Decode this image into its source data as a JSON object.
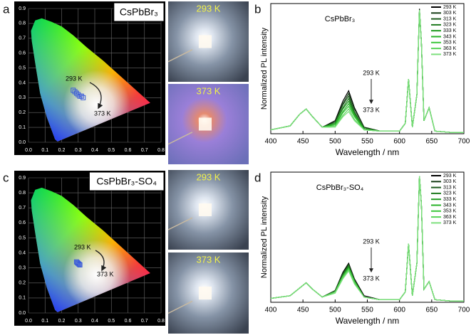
{
  "panels": [
    "a",
    "b",
    "c",
    "d"
  ],
  "photos": [
    "293 K",
    "373 K",
    "293 K",
    "373 K"
  ],
  "chart_data": [
    {
      "type": "cie",
      "label": "CsPbBr₃",
      "annotations": [
        "293 K",
        "373 K"
      ],
      "x": [
        0.27,
        0.28,
        0.29,
        0.3,
        0.31,
        0.32,
        0.33
      ],
      "values": [
        0.35,
        0.34,
        0.33,
        0.32,
        0.31,
        0.31,
        0.3
      ],
      "color": "#3a5bd9",
      "xlim": [
        0,
        0.8
      ],
      "ylim": [
        0,
        0.9
      ],
      "xticks": [
        {
          "value": 0,
          "label": "0.0"
        },
        0.1,
        0.2,
        0.3,
        0.4,
        0.5,
        0.6,
        0.7,
        0.8
      ],
      "yticks": [
        {
          "value": 0,
          "label": "0.0"
        },
        0.1,
        0.2,
        0.3,
        0.4,
        0.5,
        0.6,
        0.7,
        0.8,
        0.9
      ],
      "grid": true
    },
    {
      "type": "line",
      "label": "CsPbBr₃",
      "annotations": [
        "293 K",
        "373 K"
      ],
      "xlabel": "Wavelength / nm",
      "ylabel": "Normalized PL intensity",
      "legend": "upper right",
      "xlim": [
        400,
        700
      ],
      "xticks": [
        400,
        450,
        500,
        550,
        600,
        650,
        700
      ],
      "ylim": [
        0,
        1
      ],
      "x": [
        400,
        430,
        445,
        455,
        465,
        480,
        500,
        512,
        521,
        530,
        545,
        570,
        600,
        609,
        614,
        620,
        627,
        631,
        634,
        638,
        646,
        655,
        680,
        700
      ],
      "series": [
        {
          "name": "293 K",
          "color": "#000000",
          "values": [
            0.03,
            0.06,
            0.15,
            0.19,
            0.13,
            0.05,
            0.1,
            0.25,
            0.33,
            0.2,
            0.05,
            0.02,
            0.02,
            0.08,
            0.42,
            0.05,
            0.3,
            0.96,
            0.7,
            0.1,
            0.2,
            0.02,
            0.01,
            0.01
          ]
        },
        {
          "name": "303 K",
          "color": "#173d17",
          "values": [
            0.03,
            0.06,
            0.15,
            0.19,
            0.13,
            0.05,
            0.09,
            0.23,
            0.31,
            0.19,
            0.05,
            0.02,
            0.02,
            0.08,
            0.42,
            0.05,
            0.3,
            0.95,
            0.7,
            0.1,
            0.2,
            0.02,
            0.01,
            0.01
          ]
        },
        {
          "name": "313 K",
          "color": "#1d5a1d",
          "values": [
            0.03,
            0.06,
            0.15,
            0.19,
            0.13,
            0.05,
            0.09,
            0.22,
            0.29,
            0.17,
            0.04,
            0.02,
            0.02,
            0.08,
            0.42,
            0.05,
            0.3,
            0.95,
            0.7,
            0.1,
            0.2,
            0.02,
            0.01,
            0.01
          ]
        },
        {
          "name": "323 K",
          "color": "#1f7a1f",
          "values": [
            0.03,
            0.06,
            0.15,
            0.19,
            0.13,
            0.05,
            0.08,
            0.2,
            0.27,
            0.16,
            0.04,
            0.02,
            0.02,
            0.08,
            0.42,
            0.05,
            0.3,
            0.95,
            0.7,
            0.1,
            0.2,
            0.02,
            0.01,
            0.01
          ]
        },
        {
          "name": "333 K",
          "color": "#1f9a1f",
          "values": [
            0.03,
            0.06,
            0.15,
            0.19,
            0.13,
            0.05,
            0.08,
            0.19,
            0.25,
            0.15,
            0.04,
            0.02,
            0.02,
            0.08,
            0.42,
            0.05,
            0.3,
            0.95,
            0.7,
            0.1,
            0.2,
            0.02,
            0.01,
            0.01
          ]
        },
        {
          "name": "343 K",
          "color": "#27b327",
          "values": [
            0.03,
            0.06,
            0.15,
            0.19,
            0.13,
            0.05,
            0.07,
            0.17,
            0.23,
            0.14,
            0.03,
            0.02,
            0.02,
            0.08,
            0.42,
            0.05,
            0.3,
            0.95,
            0.7,
            0.1,
            0.2,
            0.02,
            0.01,
            0.01
          ]
        },
        {
          "name": "353 K",
          "color": "#3cc63c",
          "values": [
            0.03,
            0.06,
            0.15,
            0.19,
            0.13,
            0.05,
            0.06,
            0.16,
            0.21,
            0.13,
            0.03,
            0.02,
            0.02,
            0.08,
            0.42,
            0.05,
            0.3,
            0.95,
            0.7,
            0.1,
            0.2,
            0.02,
            0.01,
            0.01
          ]
        },
        {
          "name": "363 K",
          "color": "#58d458",
          "values": [
            0.03,
            0.06,
            0.15,
            0.19,
            0.13,
            0.05,
            0.06,
            0.14,
            0.19,
            0.11,
            0.03,
            0.02,
            0.02,
            0.08,
            0.42,
            0.05,
            0.3,
            0.95,
            0.7,
            0.1,
            0.2,
            0.02,
            0.01,
            0.01
          ]
        },
        {
          "name": "373 K",
          "color": "#7de07d",
          "values": [
            0.03,
            0.06,
            0.15,
            0.19,
            0.13,
            0.05,
            0.05,
            0.13,
            0.17,
            0.1,
            0.03,
            0.02,
            0.02,
            0.08,
            0.42,
            0.05,
            0.3,
            0.95,
            0.7,
            0.1,
            0.2,
            0.02,
            0.01,
            0.01
          ]
        }
      ]
    },
    {
      "type": "cie",
      "label": "CsPbBr₃-SO₄",
      "annotations": [
        "293 K",
        "373 K"
      ],
      "x": [
        0.29,
        0.295,
        0.3,
        0.305,
        0.31
      ],
      "values": [
        0.34,
        0.335,
        0.33,
        0.325,
        0.32
      ],
      "color": "#3a5bd9",
      "xlim": [
        0,
        0.8
      ],
      "ylim": [
        0,
        0.9
      ],
      "xticks": [
        {
          "value": 0,
          "label": "0.0"
        },
        0.1,
        0.2,
        0.3,
        0.4,
        0.5,
        0.6,
        0.7,
        0.8
      ],
      "yticks": [
        {
          "value": 0,
          "label": "0.0"
        },
        0.1,
        0.2,
        0.3,
        0.4,
        0.5,
        0.6,
        0.7,
        0.8,
        0.9
      ],
      "grid": true
    },
    {
      "type": "line",
      "label": "CsPbBr₃-SO₄",
      "annotations": [
        "293 K",
        "373 K"
      ],
      "xlabel": "Wavelength / nm",
      "ylabel": "Normalized PL intensity",
      "legend": "upper right",
      "xlim": [
        400,
        700
      ],
      "xticks": [
        400,
        450,
        500,
        550,
        600,
        650,
        700
      ],
      "ylim": [
        0,
        1
      ],
      "x": [
        400,
        430,
        445,
        455,
        465,
        480,
        500,
        512,
        521,
        530,
        545,
        570,
        600,
        609,
        614,
        620,
        627,
        631,
        634,
        638,
        646,
        655,
        680,
        700
      ],
      "series": [
        {
          "name": "293 K",
          "color": "#000000",
          "values": [
            0.03,
            0.05,
            0.11,
            0.15,
            0.1,
            0.04,
            0.09,
            0.23,
            0.3,
            0.18,
            0.05,
            0.02,
            0.02,
            0.08,
            0.45,
            0.05,
            0.3,
            0.97,
            0.75,
            0.1,
            0.16,
            0.02,
            0.01,
            0.01
          ]
        },
        {
          "name": "303 K",
          "color": "#173d17",
          "values": [
            0.03,
            0.05,
            0.11,
            0.15,
            0.1,
            0.04,
            0.09,
            0.22,
            0.29,
            0.17,
            0.04,
            0.02,
            0.02,
            0.08,
            0.45,
            0.05,
            0.3,
            0.97,
            0.75,
            0.1,
            0.16,
            0.02,
            0.01,
            0.01
          ]
        },
        {
          "name": "313 K",
          "color": "#1d5a1d",
          "values": [
            0.03,
            0.05,
            0.11,
            0.15,
            0.1,
            0.04,
            0.09,
            0.22,
            0.29,
            0.17,
            0.04,
            0.02,
            0.02,
            0.08,
            0.45,
            0.05,
            0.3,
            0.97,
            0.75,
            0.1,
            0.16,
            0.02,
            0.01,
            0.01
          ]
        },
        {
          "name": "323 K",
          "color": "#1f7a1f",
          "values": [
            0.03,
            0.05,
            0.11,
            0.15,
            0.1,
            0.04,
            0.08,
            0.21,
            0.28,
            0.17,
            0.04,
            0.02,
            0.02,
            0.08,
            0.45,
            0.05,
            0.3,
            0.97,
            0.75,
            0.1,
            0.16,
            0.02,
            0.01,
            0.01
          ]
        },
        {
          "name": "333 K",
          "color": "#1f9a1f",
          "values": [
            0.03,
            0.05,
            0.11,
            0.15,
            0.1,
            0.04,
            0.08,
            0.2,
            0.27,
            0.16,
            0.04,
            0.02,
            0.02,
            0.08,
            0.45,
            0.05,
            0.3,
            0.97,
            0.75,
            0.1,
            0.16,
            0.02,
            0.01,
            0.01
          ]
        },
        {
          "name": "343 K",
          "color": "#27b327",
          "values": [
            0.03,
            0.05,
            0.11,
            0.15,
            0.1,
            0.04,
            0.08,
            0.2,
            0.26,
            0.16,
            0.04,
            0.02,
            0.02,
            0.08,
            0.45,
            0.05,
            0.3,
            0.97,
            0.75,
            0.1,
            0.16,
            0.02,
            0.01,
            0.01
          ]
        },
        {
          "name": "353 K",
          "color": "#3cc63c",
          "values": [
            0.03,
            0.05,
            0.11,
            0.15,
            0.1,
            0.04,
            0.08,
            0.2,
            0.26,
            0.16,
            0.04,
            0.02,
            0.02,
            0.08,
            0.45,
            0.05,
            0.3,
            0.97,
            0.75,
            0.1,
            0.16,
            0.02,
            0.01,
            0.01
          ]
        },
        {
          "name": "363 K",
          "color": "#58d458",
          "values": [
            0.03,
            0.05,
            0.11,
            0.15,
            0.1,
            0.04,
            0.08,
            0.19,
            0.25,
            0.15,
            0.04,
            0.02,
            0.02,
            0.08,
            0.45,
            0.05,
            0.3,
            0.97,
            0.75,
            0.1,
            0.16,
            0.02,
            0.01,
            0.01
          ]
        },
        {
          "name": "373 K",
          "color": "#7de07d",
          "values": [
            0.03,
            0.05,
            0.11,
            0.15,
            0.1,
            0.04,
            0.07,
            0.18,
            0.24,
            0.14,
            0.04,
            0.02,
            0.02,
            0.08,
            0.45,
            0.05,
            0.3,
            0.97,
            0.75,
            0.1,
            0.16,
            0.02,
            0.01,
            0.01
          ]
        }
      ]
    }
  ]
}
